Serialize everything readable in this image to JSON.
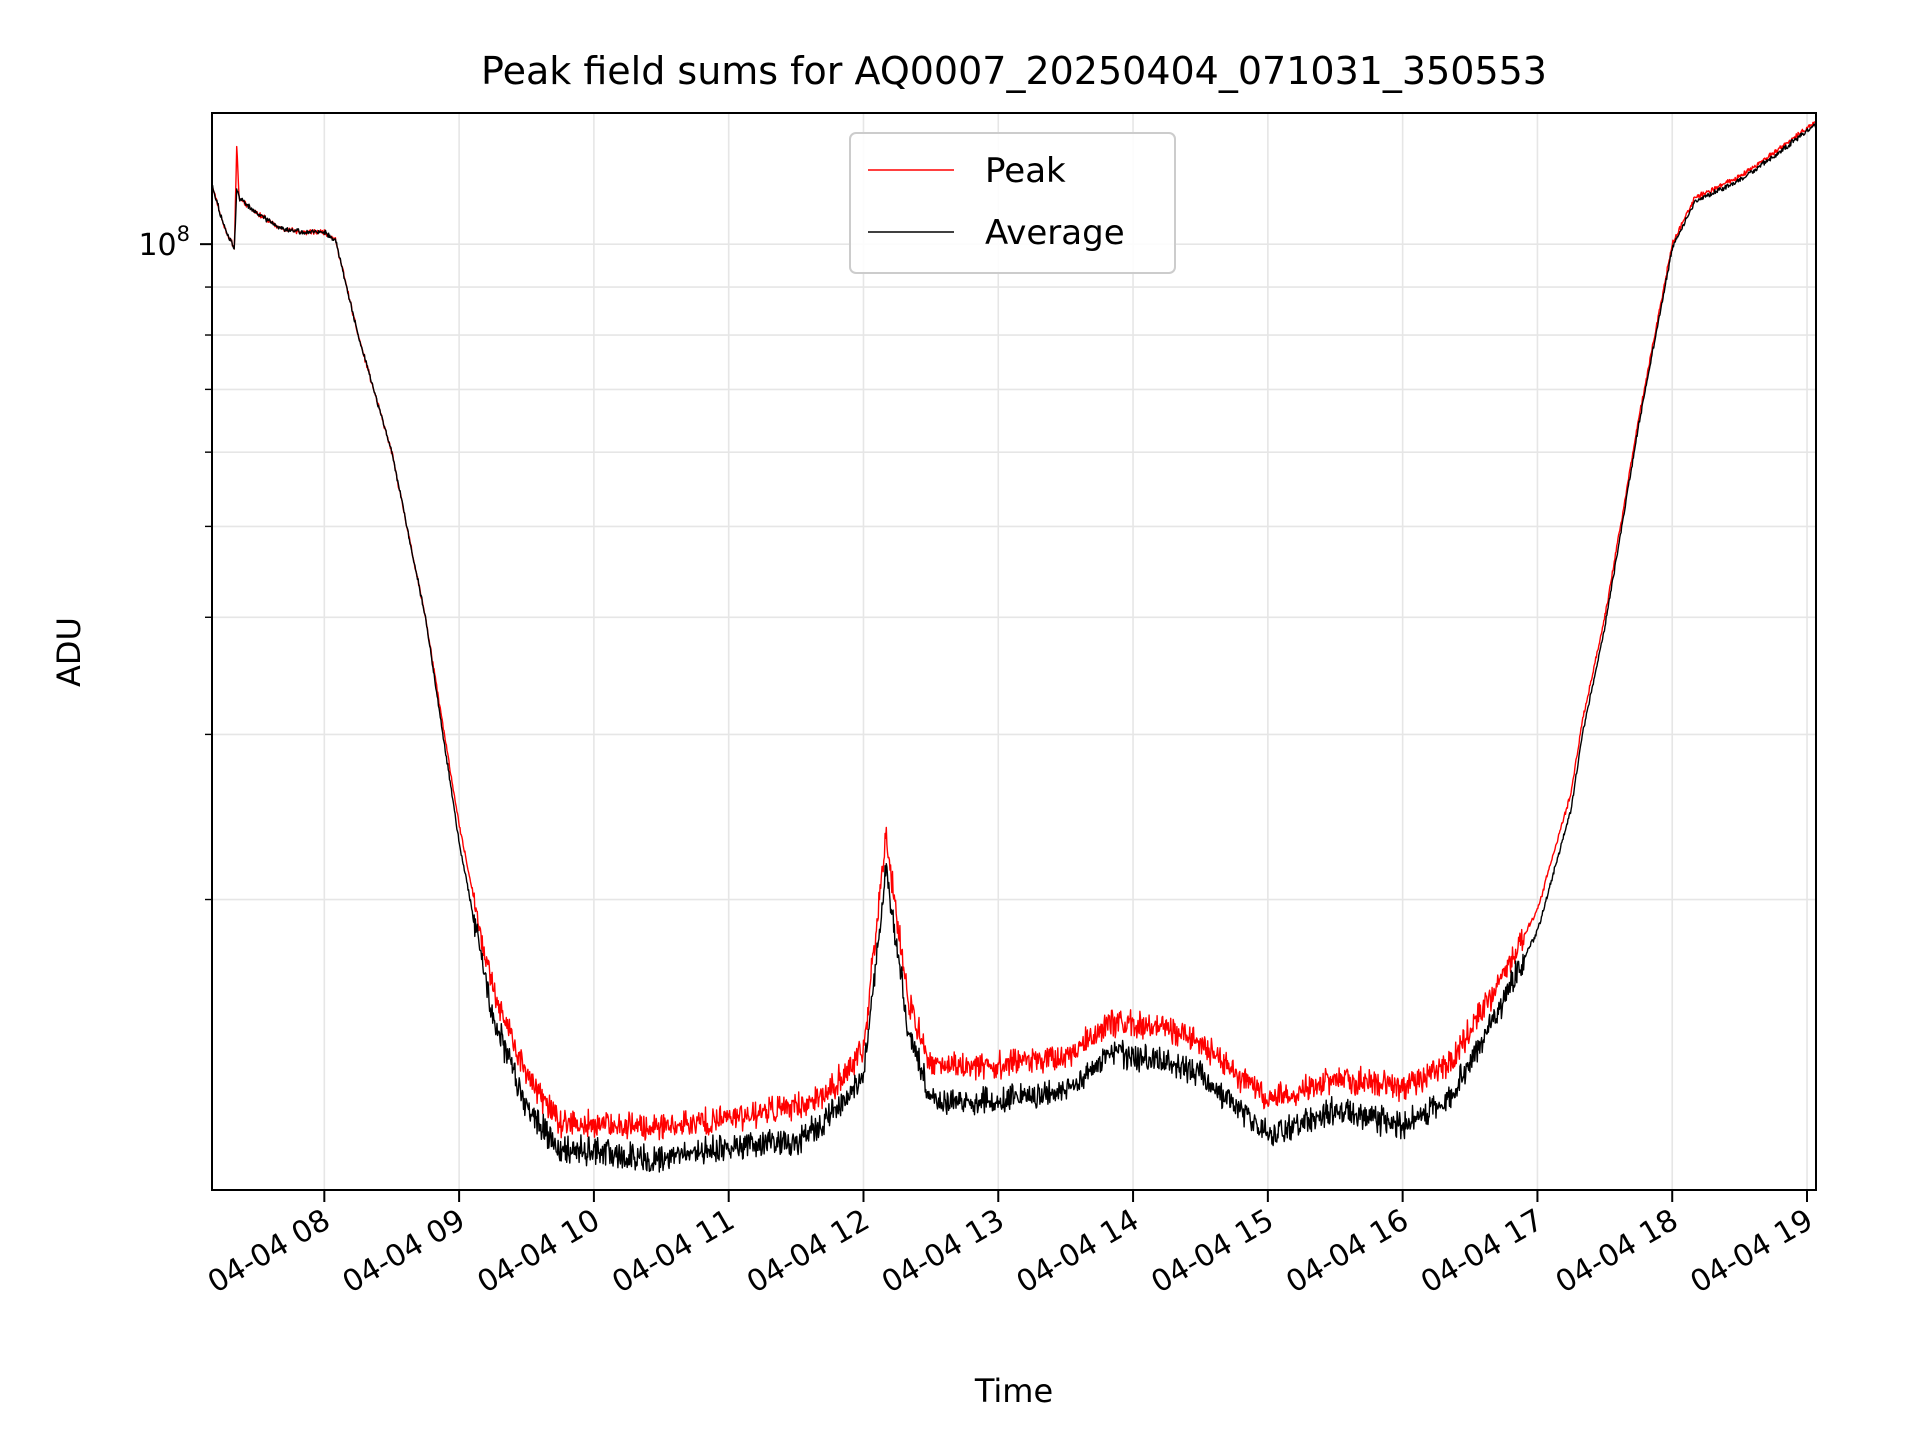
{
  "chart_data": {
    "type": "line",
    "title": "Peak field sums for AQ0007_20250404_071031_350553",
    "xlabel": "Time",
    "ylabel": "ADU",
    "x_scale": "time",
    "y_scale": "log",
    "xlim": [
      "04-04 07:10",
      "04-04 19:04"
    ],
    "ylim": [
      9800000,
      138000000
    ],
    "x_ticks": [
      "04-04 08",
      "04-04 09",
      "04-04 10",
      "04-04 11",
      "04-04 12",
      "04-04 13",
      "04-04 14",
      "04-04 15",
      "04-04 16",
      "04-04 17",
      "04-04 18",
      "04-04 19"
    ],
    "y_major_tick_label": {
      "base": "10",
      "exponent": "8"
    },
    "grid": true,
    "legend": {
      "placement": "top-center",
      "entries": [
        "Peak",
        "Average"
      ]
    },
    "series": [
      {
        "name": "Peak",
        "color": "#ff0000",
        "points": [
          [
            "07:10",
            116000000
          ],
          [
            "07:15",
            105000000
          ],
          [
            "07:20",
            99000000
          ],
          [
            "07:21",
            128000000
          ],
          [
            "07:22",
            112000000
          ],
          [
            "07:30",
            108000000
          ],
          [
            "07:40",
            104000000
          ],
          [
            "07:50",
            103000000
          ],
          [
            "08:00",
            103000000
          ],
          [
            "08:05",
            101000000
          ],
          [
            "08:15",
            80000000
          ],
          [
            "08:30",
            60000000
          ],
          [
            "08:45",
            40000000
          ],
          [
            "09:00",
            24000000
          ],
          [
            "09:15",
            16000000
          ],
          [
            "09:30",
            13000000
          ],
          [
            "09:45",
            11500000
          ],
          [
            "10:00",
            11500000
          ],
          [
            "10:30",
            11400000
          ],
          [
            "11:00",
            11700000
          ],
          [
            "11:30",
            12000000
          ],
          [
            "11:45",
            12500000
          ],
          [
            "12:00",
            13800000
          ],
          [
            "12:10",
            23500000
          ],
          [
            "12:20",
            15500000
          ],
          [
            "12:30",
            13300000
          ],
          [
            "13:00",
            13300000
          ],
          [
            "13:30",
            13600000
          ],
          [
            "13:50",
            14800000
          ],
          [
            "14:15",
            14500000
          ],
          [
            "14:30",
            14100000
          ],
          [
            "15:00",
            12200000
          ],
          [
            "15:30",
            12900000
          ],
          [
            "16:00",
            12600000
          ],
          [
            "16:20",
            13300000
          ],
          [
            "16:40",
            15800000
          ],
          [
            "17:00",
            19500000
          ],
          [
            "17:15",
            26000000
          ],
          [
            "17:20",
            31000000
          ],
          [
            "17:30",
            40000000
          ],
          [
            "17:45",
            65000000
          ],
          [
            "18:00",
            100000000
          ],
          [
            "18:10",
            112000000
          ],
          [
            "18:30",
            118000000
          ],
          [
            "18:45",
            125000000
          ],
          [
            "19:00",
            133000000
          ],
          [
            "19:04",
            135000000
          ]
        ]
      },
      {
        "name": "Average",
        "color": "#000000",
        "points": [
          [
            "07:10",
            116000000
          ],
          [
            "07:15",
            105000000
          ],
          [
            "07:20",
            99000000
          ],
          [
            "07:21",
            115000000
          ],
          [
            "07:22",
            112000000
          ],
          [
            "07:30",
            108000000
          ],
          [
            "07:40",
            104000000
          ],
          [
            "07:50",
            103000000
          ],
          [
            "08:00",
            103000000
          ],
          [
            "08:05",
            101000000
          ],
          [
            "08:15",
            80000000
          ],
          [
            "08:30",
            60000000
          ],
          [
            "08:45",
            40000000
          ],
          [
            "09:00",
            23000000
          ],
          [
            "09:15",
            15000000
          ],
          [
            "09:30",
            12000000
          ],
          [
            "09:45",
            10800000
          ],
          [
            "10:00",
            10800000
          ],
          [
            "10:30",
            10500000
          ],
          [
            "11:00",
            10900000
          ],
          [
            "11:30",
            11000000
          ],
          [
            "11:45",
            11700000
          ],
          [
            "12:00",
            13000000
          ],
          [
            "12:10",
            21500000
          ],
          [
            "12:20",
            14500000
          ],
          [
            "12:30",
            12200000
          ],
          [
            "13:00",
            12200000
          ],
          [
            "13:30",
            12500000
          ],
          [
            "13:50",
            13700000
          ],
          [
            "14:15",
            13400000
          ],
          [
            "14:30",
            13000000
          ],
          [
            "15:00",
            11200000
          ],
          [
            "15:30",
            11900000
          ],
          [
            "16:00",
            11500000
          ],
          [
            "16:20",
            12200000
          ],
          [
            "16:40",
            14800000
          ],
          [
            "17:00",
            18500000
          ],
          [
            "17:15",
            25000000
          ],
          [
            "17:20",
            30000000
          ],
          [
            "17:30",
            39000000
          ],
          [
            "17:45",
            64000000
          ],
          [
            "18:00",
            99000000
          ],
          [
            "18:10",
            111000000
          ],
          [
            "18:30",
            117000000
          ],
          [
            "18:45",
            124000000
          ],
          [
            "19:00",
            132000000
          ],
          [
            "19:04",
            134000000
          ]
        ]
      }
    ]
  }
}
